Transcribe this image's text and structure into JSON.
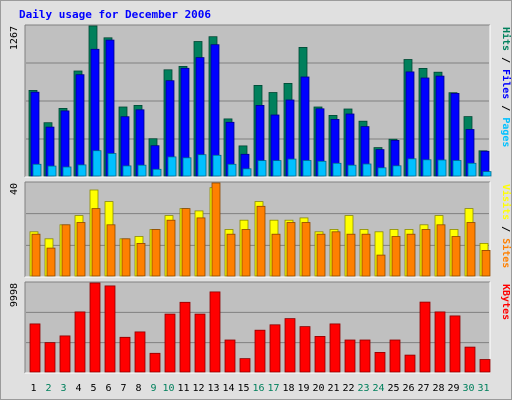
{
  "chart_data": {
    "type": "bar",
    "title": "Daily usage for December 2006",
    "categories": [
      "1",
      "2",
      "3",
      "4",
      "5",
      "6",
      "7",
      "8",
      "9",
      "10",
      "11",
      "12",
      "13",
      "14",
      "15",
      "16",
      "17",
      "18",
      "19",
      "20",
      "21",
      "22",
      "23",
      "24",
      "25",
      "26",
      "27",
      "28",
      "29",
      "30",
      "31"
    ],
    "weekend_days": [
      "2",
      "3",
      "9",
      "10",
      "16",
      "17",
      "23",
      "24",
      "30",
      "31"
    ],
    "panels": [
      {
        "id": "hits_files_pages",
        "ymax_label": "1267",
        "ymax": 1267,
        "right_label": [
          "Pages",
          "Files",
          "Hits"
        ],
        "series": [
          {
            "name": "Hits",
            "color": "#00805c",
            "values": [
              723,
              450,
              571,
              887,
              1267,
              1167,
              583,
              596,
              315,
              897,
              926,
              1136,
              1177,
              482,
              254,
              765,
              705,
              782,
              1086,
              583,
              512,
              566,
              463,
              240,
              311,
              984,
              909,
              877,
              704,
              502,
              213
            ]
          },
          {
            "name": "Files",
            "color": "#0000ff",
            "values": [
              708,
              413,
              550,
              856,
              1070,
              1148,
              501,
              559,
              256,
              805,
              910,
              1000,
              1109,
              454,
              183,
              596,
              515,
              642,
              836,
              568,
              478,
              524,
              417,
              223,
              301,
              879,
              828,
              844,
              698,
              393,
              209
            ]
          },
          {
            "name": "Pages",
            "color": "#00c0ff",
            "values": [
              99,
              84,
              76,
              94,
              214,
              190,
              85,
              91,
              57,
              161,
              154,
              180,
              175,
              99,
              61,
              130,
              130,
              143,
              131,
              124,
              107,
              91,
              101,
              69,
              86,
              145,
              137,
              135,
              131,
              107,
              37
            ]
          }
        ]
      },
      {
        "id": "visits_sites",
        "ymax_label": "40",
        "ymax": 40,
        "right_label": [
          "Sites",
          "Visits"
        ],
        "series": [
          {
            "name": "Visits",
            "color": "#ffff00",
            "values": [
              19,
              16,
              22,
              26,
              37,
              32,
              16,
              17,
              20,
              26,
              29,
              28,
              38,
              20,
              24,
              32,
              24,
              24,
              25,
              19,
              20,
              26,
              20,
              19,
              20,
              20,
              22,
              26,
              20,
              29,
              14
            ]
          },
          {
            "name": "Sites",
            "color": "#ff8000",
            "values": [
              18,
              12,
              22,
              23,
              29,
              22,
              16,
              14,
              20,
              24,
              29,
              25,
              40,
              18,
              20,
              30,
              18,
              23,
              23,
              18,
              19,
              18,
              18,
              9,
              17,
              18,
              20,
              22,
              17,
              23,
              11
            ]
          }
        ]
      },
      {
        "id": "kbytes",
        "ymax_label": "9998",
        "ymax": 9998,
        "right_label": [
          "KBytes"
        ],
        "series": [
          {
            "name": "KBytes",
            "color": "#ff0000",
            "values": [
              5400,
              3300,
              4050,
              6750,
              9998,
              9668,
              3900,
              4500,
              2100,
              6500,
              7834,
              6500,
              8999,
              3600,
              1500,
              4700,
              5300,
              6000,
              5100,
              4000,
              5400,
              3600,
              3600,
              2200,
              3600,
              1900,
              7850,
              6750,
              6300,
              2800,
              1400
            ]
          }
        ]
      }
    ],
    "grid": true
  }
}
